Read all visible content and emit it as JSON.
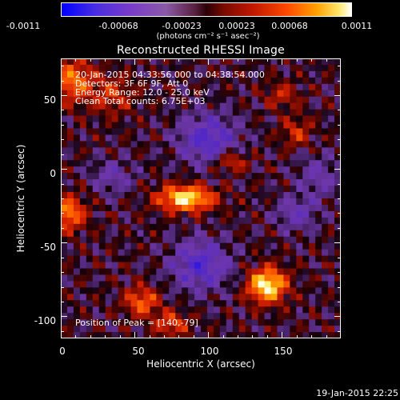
{
  "colorbar": {
    "tick_labels": [
      "-0.0011",
      "-0.00068",
      "-0.00023",
      "0.00023",
      "0.00068",
      "0.0011"
    ],
    "unit_label": "(photons cm⁻² s⁻¹ asec⁻²)"
  },
  "plot": {
    "title": "Reconstructed RHESSI Image",
    "xlabel": "Heliocentric X (arcsec)",
    "ylabel": "Heliocentric Y (arcsec)",
    "x_ticks": [
      "0",
      "50",
      "100",
      "150"
    ],
    "y_ticks": [
      "50",
      "0",
      "-50",
      "-100"
    ],
    "xlim": [
      0,
      190
    ],
    "ylim": [
      -115,
      75
    ]
  },
  "info": {
    "line1": "20-Jan-2015 04:33:56.000 to 04:38:54.000",
    "line2": "Detectors: 3F 6F 9F, Att 0",
    "line3": "Energy Range: 12.0 - 25.0 keV",
    "line4": "Clean     Total counts: 6.75E+03"
  },
  "peak": {
    "label": "Position of Peak = [140,-79]",
    "x": 140,
    "y": -79
  },
  "timestamp": "19-Jan-2015 22:25"
}
